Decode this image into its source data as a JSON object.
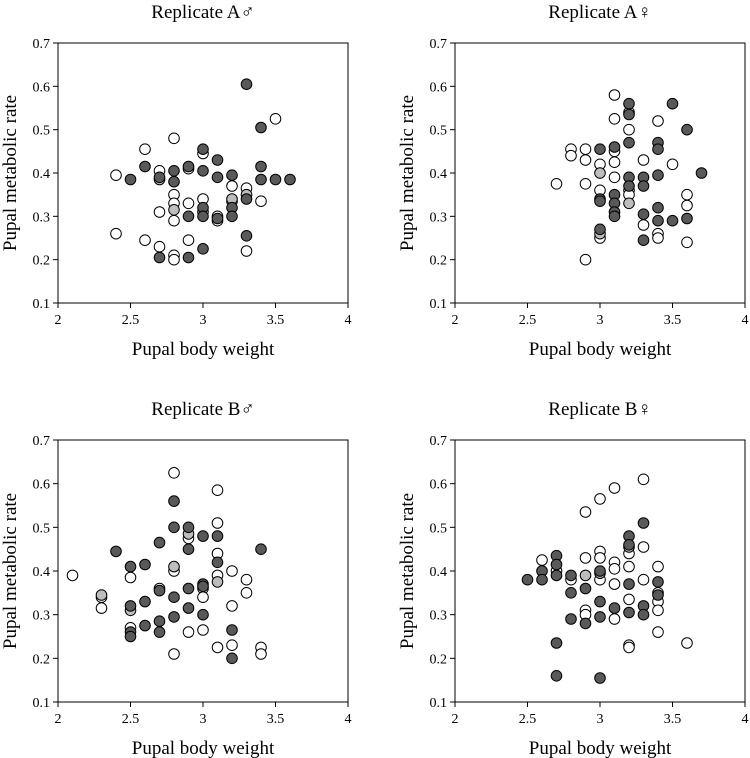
{
  "chart_data": [
    {
      "type": "scatter",
      "title": "Replicate A♂",
      "xlabel": "Pupal body weight",
      "ylabel": "Pupal metabolic rate",
      "xlim": [
        2,
        4
      ],
      "ylim": [
        0.1,
        0.7
      ],
      "xticks": [
        "2",
        "2.5",
        "3",
        "3.5",
        "4"
      ],
      "yticks": [
        "0.1",
        "0.2",
        "0.3",
        "0.4",
        "0.5",
        "0.6",
        "0.7"
      ],
      "series": [
        {
          "name": "open",
          "fill": "#ffffff",
          "points": [
            [
              2.4,
              0.395
            ],
            [
              2.4,
              0.26
            ],
            [
              2.6,
              0.455
            ],
            [
              2.6,
              0.245
            ],
            [
              2.7,
              0.405
            ],
            [
              2.7,
              0.31
            ],
            [
              2.7,
              0.23
            ],
            [
              2.8,
              0.48
            ],
            [
              2.8,
              0.35
            ],
            [
              2.8,
              0.33
            ],
            [
              2.8,
              0.29
            ],
            [
              2.8,
              0.21
            ],
            [
              2.8,
              0.2
            ],
            [
              2.9,
              0.41
            ],
            [
              2.9,
              0.33
            ],
            [
              2.9,
              0.245
            ],
            [
              3.0,
              0.445
            ],
            [
              3.0,
              0.34
            ],
            [
              3.0,
              0.31
            ],
            [
              3.1,
              0.3
            ],
            [
              3.1,
              0.29
            ],
            [
              3.2,
              0.37
            ],
            [
              3.2,
              0.335
            ],
            [
              3.3,
              0.365
            ],
            [
              3.3,
              0.22
            ],
            [
              3.4,
              0.335
            ],
            [
              3.5,
              0.525
            ]
          ]
        },
        {
          "name": "grey",
          "fill": "#bdbdbd",
          "points": [
            [
              2.7,
              0.385
            ],
            [
              2.8,
              0.315
            ],
            [
              3.2,
              0.34
            ],
            [
              3.3,
              0.35
            ]
          ]
        },
        {
          "name": "dark",
          "fill": "#595959",
          "points": [
            [
              2.5,
              0.385
            ],
            [
              2.6,
              0.415
            ],
            [
              2.7,
              0.39
            ],
            [
              2.7,
              0.205
            ],
            [
              2.8,
              0.405
            ],
            [
              2.8,
              0.38
            ],
            [
              2.9,
              0.415
            ],
            [
              2.9,
              0.3
            ],
            [
              2.9,
              0.205
            ],
            [
              3.0,
              0.455
            ],
            [
              3.0,
              0.405
            ],
            [
              3.0,
              0.32
            ],
            [
              3.0,
              0.3
            ],
            [
              3.0,
              0.225
            ],
            [
              3.1,
              0.43
            ],
            [
              3.1,
              0.39
            ],
            [
              3.1,
              0.295
            ],
            [
              3.2,
              0.395
            ],
            [
              3.2,
              0.32
            ],
            [
              3.2,
              0.3
            ],
            [
              3.3,
              0.605
            ],
            [
              3.3,
              0.34
            ],
            [
              3.3,
              0.255
            ],
            [
              3.4,
              0.505
            ],
            [
              3.4,
              0.415
            ],
            [
              3.4,
              0.385
            ],
            [
              3.5,
              0.385
            ],
            [
              3.6,
              0.385
            ]
          ]
        }
      ]
    },
    {
      "type": "scatter",
      "title": "Replicate A♀",
      "xlabel": "Pupal body weight",
      "ylabel": "Pupal metabolic rate",
      "xlim": [
        2,
        4
      ],
      "ylim": [
        0.1,
        0.7
      ],
      "xticks": [
        "2",
        "2.5",
        "3",
        "3.5",
        "4"
      ],
      "yticks": [
        "0.1",
        "0.2",
        "0.3",
        "0.4",
        "0.5",
        "0.6",
        "0.7"
      ],
      "series": [
        {
          "name": "open",
          "fill": "#ffffff",
          "points": [
            [
              2.7,
              0.375
            ],
            [
              2.8,
              0.455
            ],
            [
              2.8,
              0.44
            ],
            [
              2.9,
              0.455
            ],
            [
              2.9,
              0.43
            ],
            [
              2.9,
              0.375
            ],
            [
              2.9,
              0.2
            ],
            [
              3.0,
              0.42
            ],
            [
              3.0,
              0.36
            ],
            [
              3.0,
              0.25
            ],
            [
              3.1,
              0.58
            ],
            [
              3.1,
              0.525
            ],
            [
              3.1,
              0.45
            ],
            [
              3.1,
              0.425
            ],
            [
              3.1,
              0.39
            ],
            [
              3.2,
              0.54
            ],
            [
              3.2,
              0.5
            ],
            [
              3.2,
              0.36
            ],
            [
              3.2,
              0.35
            ],
            [
              3.3,
              0.43
            ],
            [
              3.3,
              0.28
            ],
            [
              3.4,
              0.52
            ],
            [
              3.4,
              0.26
            ],
            [
              3.4,
              0.25
            ],
            [
              3.5,
              0.42
            ],
            [
              3.6,
              0.35
            ],
            [
              3.6,
              0.325
            ],
            [
              3.6,
              0.24
            ]
          ]
        },
        {
          "name": "grey",
          "fill": "#bdbdbd",
          "points": [
            [
              3.0,
              0.4
            ],
            [
              3.0,
              0.26
            ],
            [
              3.2,
              0.33
            ]
          ]
        },
        {
          "name": "dark",
          "fill": "#595959",
          "points": [
            [
              3.0,
              0.455
            ],
            [
              3.0,
              0.34
            ],
            [
              3.0,
              0.335
            ],
            [
              3.0,
              0.27
            ],
            [
              3.1,
              0.46
            ],
            [
              3.1,
              0.35
            ],
            [
              3.1,
              0.33
            ],
            [
              3.1,
              0.31
            ],
            [
              3.1,
              0.3
            ],
            [
              3.2,
              0.56
            ],
            [
              3.2,
              0.535
            ],
            [
              3.2,
              0.47
            ],
            [
              3.2,
              0.39
            ],
            [
              3.2,
              0.37
            ],
            [
              3.3,
              0.39
            ],
            [
              3.3,
              0.37
            ],
            [
              3.3,
              0.305
            ],
            [
              3.3,
              0.245
            ],
            [
              3.4,
              0.47
            ],
            [
              3.4,
              0.455
            ],
            [
              3.4,
              0.395
            ],
            [
              3.4,
              0.32
            ],
            [
              3.4,
              0.29
            ],
            [
              3.5,
              0.56
            ],
            [
              3.5,
              0.29
            ],
            [
              3.6,
              0.5
            ],
            [
              3.6,
              0.295
            ],
            [
              3.7,
              0.4
            ]
          ]
        }
      ]
    },
    {
      "type": "scatter",
      "title": "Replicate B♂",
      "xlabel": "Pupal body weight",
      "ylabel": "Pupal metabolic rate",
      "xlim": [
        2,
        4
      ],
      "ylim": [
        0.1,
        0.7
      ],
      "xticks": [
        "2",
        "2.5",
        "3",
        "3.5",
        "4"
      ],
      "yticks": [
        "0.1",
        "0.2",
        "0.3",
        "0.4",
        "0.5",
        "0.6",
        "0.7"
      ],
      "series": [
        {
          "name": "open",
          "fill": "#ffffff",
          "points": [
            [
              2.1,
              0.39
            ],
            [
              2.3,
              0.34
            ],
            [
              2.3,
              0.315
            ],
            [
              2.5,
              0.385
            ],
            [
              2.5,
              0.27
            ],
            [
              2.7,
              0.36
            ],
            [
              2.8,
              0.625
            ],
            [
              2.8,
              0.4
            ],
            [
              2.8,
              0.21
            ],
            [
              2.9,
              0.475
            ],
            [
              2.9,
              0.26
            ],
            [
              3.0,
              0.36
            ],
            [
              3.0,
              0.34
            ],
            [
              3.0,
              0.265
            ],
            [
              3.1,
              0.585
            ],
            [
              3.1,
              0.51
            ],
            [
              3.1,
              0.44
            ],
            [
              3.1,
              0.39
            ],
            [
              3.1,
              0.225
            ],
            [
              3.2,
              0.4
            ],
            [
              3.2,
              0.32
            ],
            [
              3.2,
              0.23
            ],
            [
              3.3,
              0.38
            ],
            [
              3.3,
              0.35
            ],
            [
              3.4,
              0.225
            ],
            [
              3.4,
              0.21
            ]
          ]
        },
        {
          "name": "grey",
          "fill": "#bdbdbd",
          "points": [
            [
              2.3,
              0.345
            ],
            [
              2.5,
              0.31
            ],
            [
              2.8,
              0.41
            ],
            [
              2.9,
              0.485
            ],
            [
              3.1,
              0.375
            ]
          ]
        },
        {
          "name": "dark",
          "fill": "#595959",
          "points": [
            [
              2.4,
              0.445
            ],
            [
              2.5,
              0.41
            ],
            [
              2.5,
              0.32
            ],
            [
              2.5,
              0.26
            ],
            [
              2.5,
              0.25
            ],
            [
              2.6,
              0.415
            ],
            [
              2.6,
              0.33
            ],
            [
              2.6,
              0.275
            ],
            [
              2.7,
              0.465
            ],
            [
              2.7,
              0.355
            ],
            [
              2.7,
              0.285
            ],
            [
              2.7,
              0.26
            ],
            [
              2.8,
              0.56
            ],
            [
              2.8,
              0.5
            ],
            [
              2.8,
              0.34
            ],
            [
              2.8,
              0.295
            ],
            [
              2.9,
              0.5
            ],
            [
              2.9,
              0.45
            ],
            [
              2.9,
              0.36
            ],
            [
              2.9,
              0.315
            ],
            [
              3.0,
              0.48
            ],
            [
              3.0,
              0.37
            ],
            [
              3.0,
              0.365
            ],
            [
              3.0,
              0.3
            ],
            [
              3.1,
              0.48
            ],
            [
              3.1,
              0.42
            ],
            [
              3.2,
              0.265
            ],
            [
              3.2,
              0.2
            ],
            [
              3.4,
              0.45
            ]
          ]
        }
      ]
    },
    {
      "type": "scatter",
      "title": "Replicate B♀",
      "xlabel": "Pupal body weight",
      "ylabel": "Pupal metabolic rate",
      "xlim": [
        2,
        4
      ],
      "ylim": [
        0.1,
        0.7
      ],
      "xticks": [
        "2",
        "2.5",
        "3",
        "3.5",
        "4"
      ],
      "yticks": [
        "0.1",
        "0.2",
        "0.3",
        "0.4",
        "0.5",
        "0.6",
        "0.7"
      ],
      "series": [
        {
          "name": "open",
          "fill": "#ffffff",
          "points": [
            [
              2.6,
              0.425
            ],
            [
              2.7,
              0.4
            ],
            [
              2.8,
              0.38
            ],
            [
              2.9,
              0.535
            ],
            [
              2.9,
              0.43
            ],
            [
              2.9,
              0.31
            ],
            [
              2.9,
              0.3
            ],
            [
              3.0,
              0.565
            ],
            [
              3.0,
              0.445
            ],
            [
              3.0,
              0.43
            ],
            [
              3.0,
              0.38
            ],
            [
              3.1,
              0.59
            ],
            [
              3.1,
              0.42
            ],
            [
              3.1,
              0.405
            ],
            [
              3.1,
              0.37
            ],
            [
              3.1,
              0.29
            ],
            [
              3.2,
              0.44
            ],
            [
              3.2,
              0.41
            ],
            [
              3.2,
              0.335
            ],
            [
              3.2,
              0.23
            ],
            [
              3.2,
              0.225
            ],
            [
              3.3,
              0.61
            ],
            [
              3.3,
              0.455
            ],
            [
              3.3,
              0.38
            ],
            [
              3.4,
              0.41
            ],
            [
              3.4,
              0.35
            ],
            [
              3.4,
              0.33
            ],
            [
              3.4,
              0.31
            ],
            [
              3.4,
              0.26
            ],
            [
              3.6,
              0.235
            ]
          ]
        },
        {
          "name": "grey",
          "fill": "#bdbdbd",
          "points": [
            [
              2.9,
              0.39
            ],
            [
              3.0,
              0.395
            ],
            [
              3.2,
              0.455
            ]
          ]
        },
        {
          "name": "dark",
          "fill": "#595959",
          "points": [
            [
              2.5,
              0.38
            ],
            [
              2.6,
              0.4
            ],
            [
              2.6,
              0.38
            ],
            [
              2.7,
              0.435
            ],
            [
              2.7,
              0.415
            ],
            [
              2.7,
              0.39
            ],
            [
              2.7,
              0.235
            ],
            [
              2.7,
              0.16
            ],
            [
              2.8,
              0.39
            ],
            [
              2.8,
              0.35
            ],
            [
              2.8,
              0.29
            ],
            [
              2.9,
              0.36
            ],
            [
              2.9,
              0.28
            ],
            [
              3.0,
              0.4
            ],
            [
              3.0,
              0.33
            ],
            [
              3.0,
              0.295
            ],
            [
              3.0,
              0.155
            ],
            [
              3.1,
              0.315
            ],
            [
              3.2,
              0.48
            ],
            [
              3.2,
              0.46
            ],
            [
              3.2,
              0.37
            ],
            [
              3.2,
              0.305
            ],
            [
              3.3,
              0.51
            ],
            [
              3.3,
              0.32
            ],
            [
              3.3,
              0.3
            ],
            [
              3.4,
              0.375
            ],
            [
              3.4,
              0.345
            ]
          ]
        }
      ]
    }
  ]
}
